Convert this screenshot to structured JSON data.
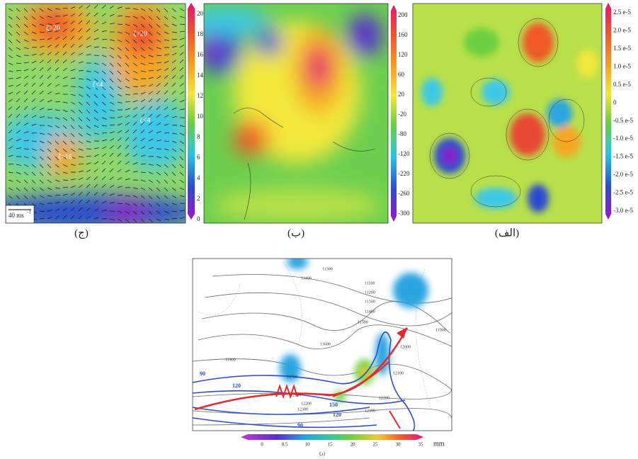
{
  "panels": [
    {
      "label": "(ج)",
      "annotations": [
        "ζ>20",
        "ζ>20",
        "ζ<4",
        "ζ<4",
        "ζ>16"
      ],
      "scale_label": "40 ms",
      "scale_exponent": "-1",
      "colorbar": [
        "20",
        "18",
        "16",
        "14",
        "12",
        "10",
        "8",
        "6",
        "4",
        "2",
        "0"
      ]
    },
    {
      "label": "(ب)",
      "colorbar": [
        "200",
        "160",
        "120",
        "60",
        "20",
        "-20",
        "-80",
        "-120",
        "-220",
        "-260",
        "-300"
      ]
    },
    {
      "label": "(الف)",
      "colorbar": [
        "2.5 e-5",
        "2.0 e-5",
        "1.5 e-5",
        "1.0 e-5",
        "0.5 e-5",
        "0",
        "-0.5 e-5",
        "-1.0 e-5",
        "-1.5 e-5",
        "-2.0 e-5",
        "-2.5 e-5",
        "-3.0 e-5"
      ]
    },
    {
      "label": "(د)",
      "contour_labels": [
        "11300",
        "11400",
        "11100",
        "11200",
        "11300",
        "11400",
        "11500",
        "11600",
        "11900",
        "12000",
        "11900",
        "11700",
        "12100",
        "12200",
        "12300",
        "12300",
        "12200",
        "12100"
      ],
      "jet_labels": [
        "90",
        "120",
        "150",
        "120",
        "90"
      ],
      "colorbar": [
        "0",
        "0.5",
        "10",
        "15",
        "20",
        "25",
        "30",
        "35"
      ],
      "unit": "mm"
    }
  ]
}
